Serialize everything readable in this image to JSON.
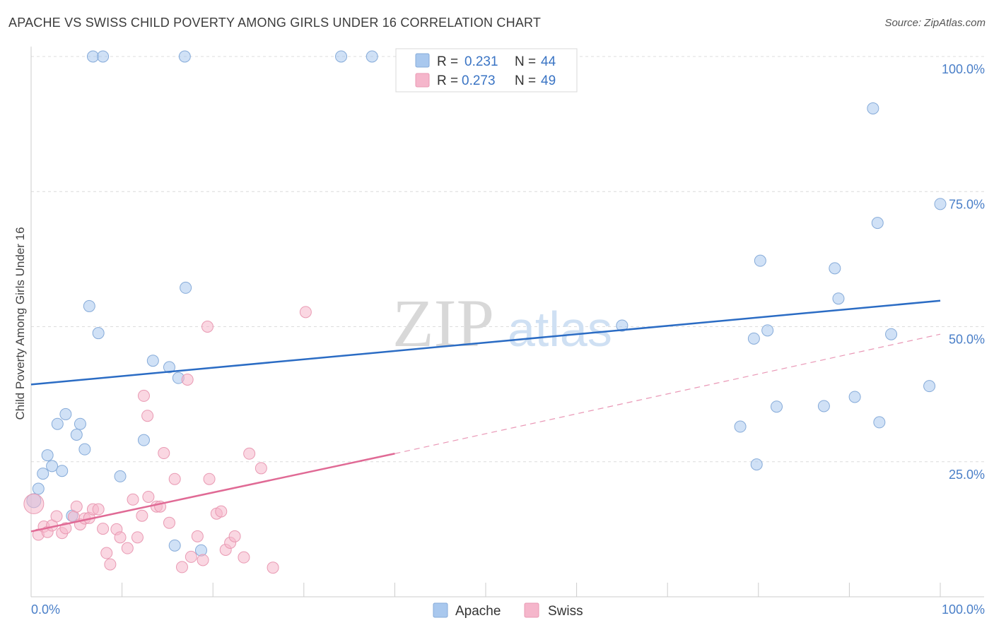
{
  "title": "APACHE VS SWISS CHILD POVERTY AMONG GIRLS UNDER 16 CORRELATION CHART",
  "source": "Source: ZipAtlas.com",
  "watermark": {
    "zip": "ZIP",
    "atlas": "atlas"
  },
  "chart_data": {
    "type": "scatter",
    "ylabel": "Child Poverty Among Girls Under 16",
    "xlim": [
      0,
      100
    ],
    "ylim": [
      0,
      100
    ],
    "x_ticks": [
      {
        "value": 0,
        "label": "0.0%"
      },
      {
        "value": 100,
        "label": "100.0%"
      }
    ],
    "y_ticks": [
      {
        "value": 25,
        "label": "25.0%"
      },
      {
        "value": 50,
        "label": "50.0%"
      },
      {
        "value": 75,
        "label": "75.0%"
      },
      {
        "value": 100,
        "label": "100.0%"
      }
    ],
    "colors": {
      "apache": "#a9c8ee",
      "apache_line": "#2b6cc4",
      "swiss": "#f5b6cb",
      "swiss_line": "#e06a95"
    },
    "legend": [
      {
        "name": "Apache",
        "r_label": "R =",
        "r": "0.231",
        "n_label": "N =",
        "n": "44"
      },
      {
        "name": "Swiss",
        "r_label": "R =",
        "r": "0.273",
        "n_label": "N =",
        "n": "49"
      }
    ],
    "series": [
      {
        "name": "Apache",
        "points": [
          [
            0.3,
            17.8
          ],
          [
            0.8,
            20
          ],
          [
            1.3,
            22.8
          ],
          [
            1.8,
            26.2
          ],
          [
            2.3,
            24.2
          ],
          [
            3.4,
            23.3
          ],
          [
            2.9,
            32
          ],
          [
            3.8,
            33.8
          ],
          [
            5.0,
            30
          ],
          [
            5.4,
            32
          ],
          [
            5.9,
            27.3
          ],
          [
            6.4,
            53.8
          ],
          [
            7.4,
            48.8
          ],
          [
            4.5,
            15
          ],
          [
            6.8,
            100
          ],
          [
            7.9,
            100
          ],
          [
            16.9,
            100
          ],
          [
            34.1,
            100
          ],
          [
            37.5,
            100
          ],
          [
            9.8,
            22.3
          ],
          [
            12.4,
            29
          ],
          [
            13.4,
            43.7
          ],
          [
            15.2,
            42.5
          ],
          [
            16.2,
            40.5
          ],
          [
            17.0,
            57.2
          ],
          [
            15.8,
            9.5
          ],
          [
            18.7,
            8.6
          ],
          [
            65.0,
            50.2
          ],
          [
            78.0,
            31.5
          ],
          [
            79.5,
            47.8
          ],
          [
            79.8,
            24.5
          ],
          [
            80.2,
            62.2
          ],
          [
            81.0,
            49.3
          ],
          [
            82.0,
            35.2
          ],
          [
            87.2,
            35.3
          ],
          [
            88.4,
            60.8
          ],
          [
            88.8,
            55.2
          ],
          [
            90.6,
            37
          ],
          [
            92.6,
            90.4
          ],
          [
            93.1,
            69.2
          ],
          [
            93.3,
            32.3
          ],
          [
            94.6,
            48.6
          ],
          [
            98.8,
            39
          ],
          [
            100.0,
            72.7
          ]
        ],
        "trend": {
          "x0": 0,
          "y0": 39.3,
          "x1": 100,
          "y1": 54.8
        }
      },
      {
        "name": "Swiss",
        "points": [
          [
            0.3,
            17.2
          ],
          [
            0.8,
            11.5
          ],
          [
            1.4,
            13
          ],
          [
            1.8,
            12
          ],
          [
            2.3,
            13.2
          ],
          [
            2.8,
            14.9
          ],
          [
            3.4,
            11.8
          ],
          [
            3.8,
            12.7
          ],
          [
            4.7,
            14.8
          ],
          [
            5.0,
            16.7
          ],
          [
            5.4,
            13.4
          ],
          [
            5.9,
            14.5
          ],
          [
            6.4,
            14.6
          ],
          [
            6.8,
            16.2
          ],
          [
            7.4,
            16.2
          ],
          [
            7.9,
            12.6
          ],
          [
            8.3,
            8.1
          ],
          [
            8.7,
            6
          ],
          [
            9.4,
            12.5
          ],
          [
            9.8,
            11
          ],
          [
            10.6,
            9
          ],
          [
            11.2,
            18
          ],
          [
            11.7,
            11
          ],
          [
            12.2,
            15
          ],
          [
            12.9,
            18.5
          ],
          [
            12.4,
            37.2
          ],
          [
            12.8,
            33.5
          ],
          [
            13.8,
            16.7
          ],
          [
            14.2,
            16.7
          ],
          [
            14.6,
            26.6
          ],
          [
            15.2,
            13.7
          ],
          [
            15.8,
            21.8
          ],
          [
            16.6,
            5.5
          ],
          [
            17.2,
            40.2
          ],
          [
            17.6,
            7.4
          ],
          [
            18.3,
            11.2
          ],
          [
            18.9,
            6.8
          ],
          [
            19.4,
            50
          ],
          [
            19.6,
            21.8
          ],
          [
            20.4,
            15.4
          ],
          [
            20.9,
            15.8
          ],
          [
            21.4,
            8.7
          ],
          [
            21.9,
            10
          ],
          [
            22.4,
            11.2
          ],
          [
            23.4,
            7.3
          ],
          [
            24.0,
            26.5
          ],
          [
            25.3,
            23.8
          ],
          [
            26.6,
            5.4
          ],
          [
            30.2,
            52.7
          ]
        ],
        "trend": {
          "x0": 0,
          "y0": 12.1,
          "x1": 40,
          "y1": 26.5
        },
        "trend_dashed": {
          "x0": 40,
          "y0": 26.5,
          "x1": 100,
          "y1": 48.6
        }
      }
    ]
  }
}
